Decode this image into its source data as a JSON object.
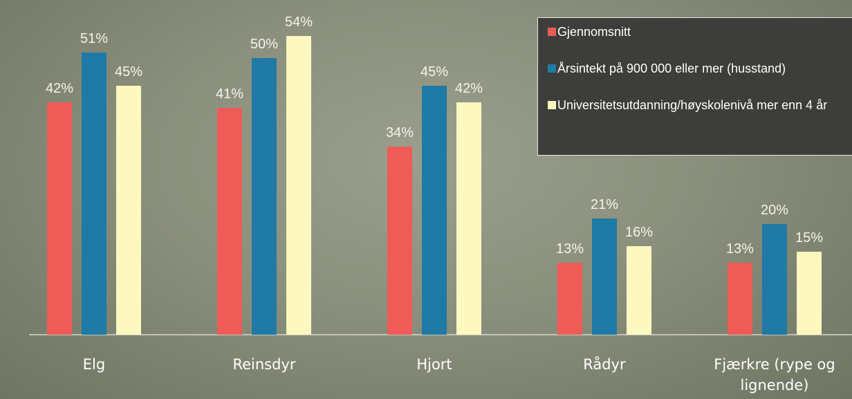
{
  "chart_data": {
    "type": "bar",
    "categories": [
      "Elg",
      "Reinsdyr",
      "Hjort",
      "Rådyr",
      "Fjærkre (rype og lignende)"
    ],
    "series": [
      {
        "name": "Gjennomsnitt",
        "color": "#ef5b57",
        "values": [
          42,
          41,
          34,
          13,
          13
        ],
        "value_labels": [
          "42%",
          "41%",
          "34%",
          "13%",
          "13%"
        ]
      },
      {
        "name": "Årsintekt på 900 000 eller mer (husstand)",
        "color": "#1f7aa6",
        "values": [
          51,
          50,
          45,
          21,
          20
        ],
        "value_labels": [
          "51%",
          "50%",
          "45%",
          "21%",
          "20%"
        ]
      },
      {
        "name": "Universitetsutdanning/høyskolenivå mer enn 4 år",
        "color": "#fdf7c0",
        "values": [
          45,
          54,
          42,
          16,
          15
        ],
        "value_labels": [
          "45%",
          "54%",
          "42%",
          "16%",
          "15%"
        ]
      }
    ],
    "ylim": [
      0,
      60
    ]
  }
}
